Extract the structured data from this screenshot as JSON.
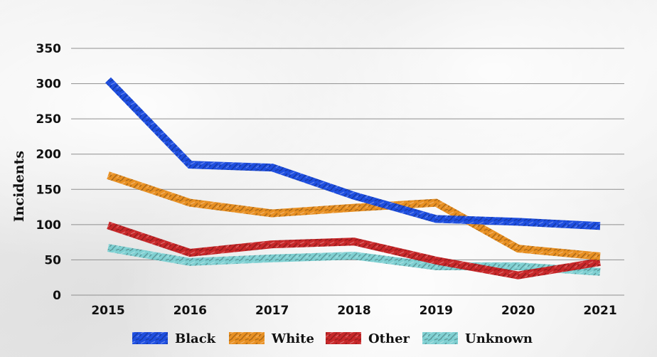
{
  "chart_data": {
    "type": "line",
    "title": "",
    "xlabel": "",
    "ylabel": "Incidents",
    "x": [
      "2015",
      "2016",
      "2017",
      "2018",
      "2019",
      "2020",
      "2021"
    ],
    "ylim": [
      0,
      350
    ],
    "yticks": [
      "0",
      "50",
      "100",
      "150",
      "200",
      "250",
      "300",
      "350"
    ],
    "grid": "horizontal",
    "legend_position": "bottom",
    "series": [
      {
        "name": "Black",
        "color": "#1f4fe0",
        "values": [
          305,
          185,
          181,
          141,
          108,
          104,
          98
        ]
      },
      {
        "name": "White",
        "color": "#e89023",
        "values": [
          170,
          131,
          116,
          124,
          131,
          66,
          55
        ]
      },
      {
        "name": "Other",
        "color": "#c8282a",
        "values": [
          99,
          60,
          72,
          76,
          49,
          28,
          47
        ]
      },
      {
        "name": "Unknown",
        "color": "#7fd0d2",
        "values": [
          67,
          47,
          52,
          56,
          41,
          41,
          33
        ]
      }
    ]
  }
}
